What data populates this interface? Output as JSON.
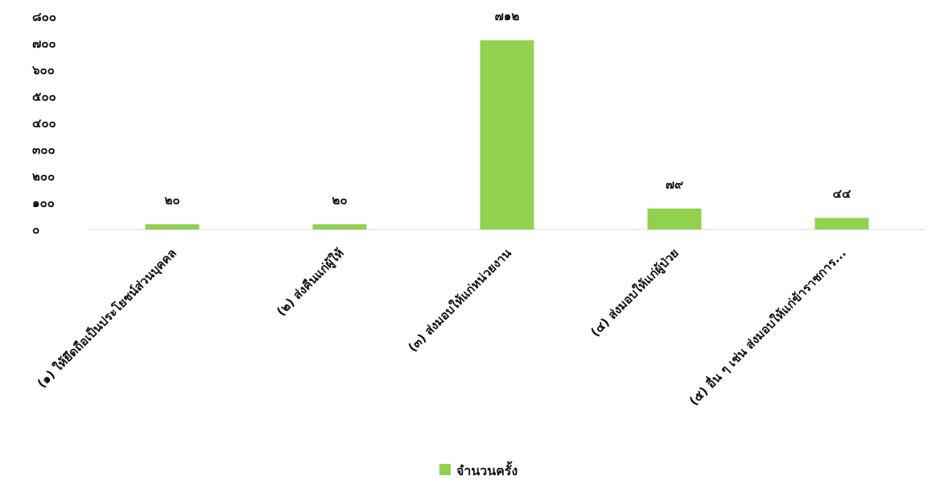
{
  "chart_data": {
    "type": "bar",
    "categories": [
      "(๑) ให้ยึดถือเป็นประโยชน์ส่วนบุคคล",
      "(๒) ส่งคืนแก่ผู้ให้",
      "(๓) ส่งมอบให้แก่หน่วยงาน",
      "(๔) ส่งมอบให้แก่ผู้ป่วย",
      "(๕) อื่น ๆ เช่น ส่งมอบให้แก่ข้าราชการ..."
    ],
    "series": [
      {
        "name": "จำนวนครั้ง",
        "values": [
          20,
          20,
          712,
          79,
          44
        ],
        "value_labels": [
          "๒๐",
          "๒๐",
          "๗๑๒",
          "๗๙",
          "๔๔"
        ],
        "color": "#92d050"
      }
    ],
    "ylim": [
      0,
      800
    ],
    "yticks": [
      0,
      100,
      200,
      300,
      400,
      500,
      600,
      700,
      800
    ],
    "ytick_labels": [
      "๐",
      "๑๐๐",
      "๒๐๐",
      "๓๐๐",
      "๔๐๐",
      "๕๐๐",
      "๖๐๐",
      "๗๐๐",
      "๘๐๐"
    ],
    "grid": false,
    "legend_position": "bottom",
    "xlabel": "",
    "ylabel": "",
    "axis_color": "#d9d9d9"
  }
}
